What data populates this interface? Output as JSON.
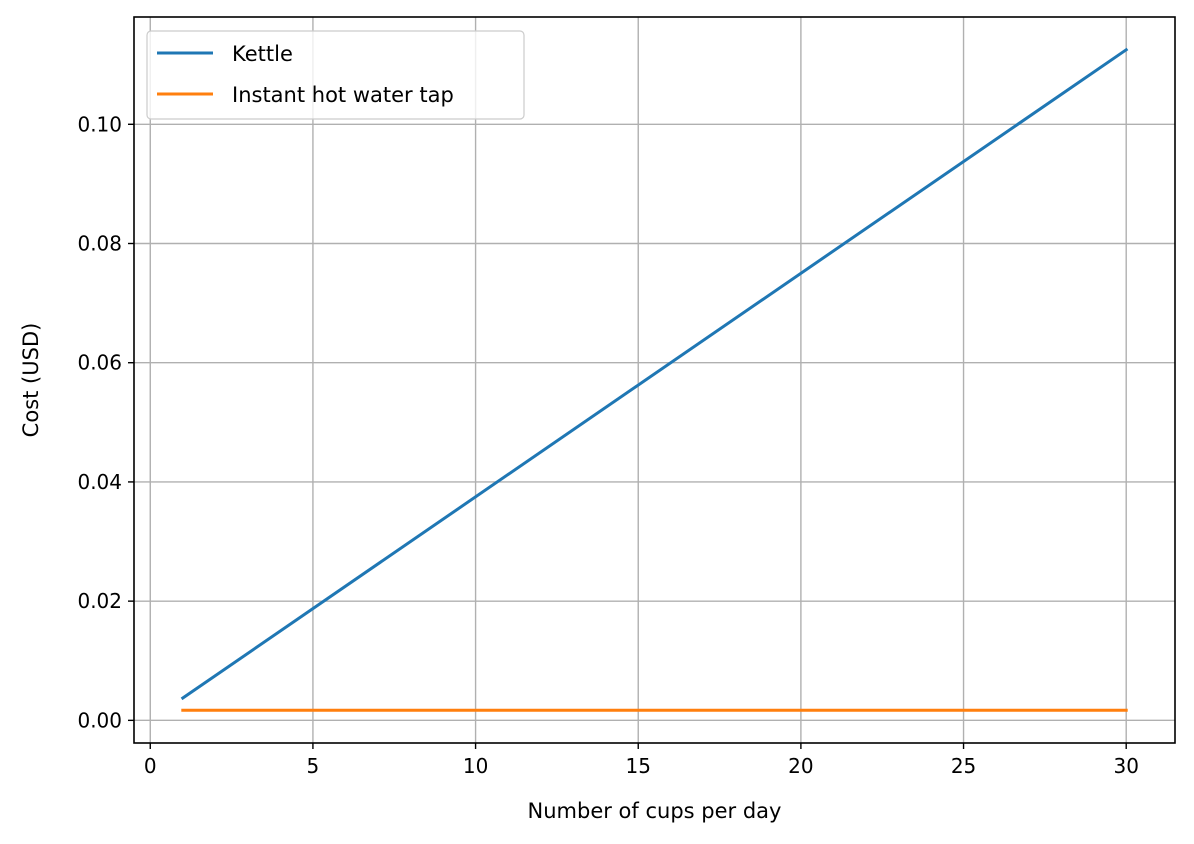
{
  "chart_data": {
    "type": "line",
    "title": "",
    "xlabel": "Number of cups per day",
    "ylabel": "Cost (USD)",
    "xlim": [
      -0.5,
      31.5
    ],
    "ylim": [
      -0.0038,
      0.118
    ],
    "x_ticks": [
      0,
      5,
      10,
      15,
      20,
      25,
      30
    ],
    "y_ticks": [
      0.0,
      0.02,
      0.04,
      0.06,
      0.08,
      0.1
    ],
    "x_tick_labels": [
      "0",
      "5",
      "10",
      "15",
      "20",
      "25",
      "30"
    ],
    "y_tick_labels": [
      "0.00",
      "0.02",
      "0.04",
      "0.06",
      "0.08",
      "0.10"
    ],
    "grid": true,
    "legend_position": "upper-left",
    "series": [
      {
        "name": "Kettle",
        "color": "#1f77b4",
        "x": [
          1,
          30
        ],
        "y": [
          0.00375,
          0.1125
        ]
      },
      {
        "name": "Instant hot water tap",
        "color": "#ff7f0e",
        "x": [
          1,
          30
        ],
        "y": [
          0.0017,
          0.0017
        ]
      }
    ]
  }
}
